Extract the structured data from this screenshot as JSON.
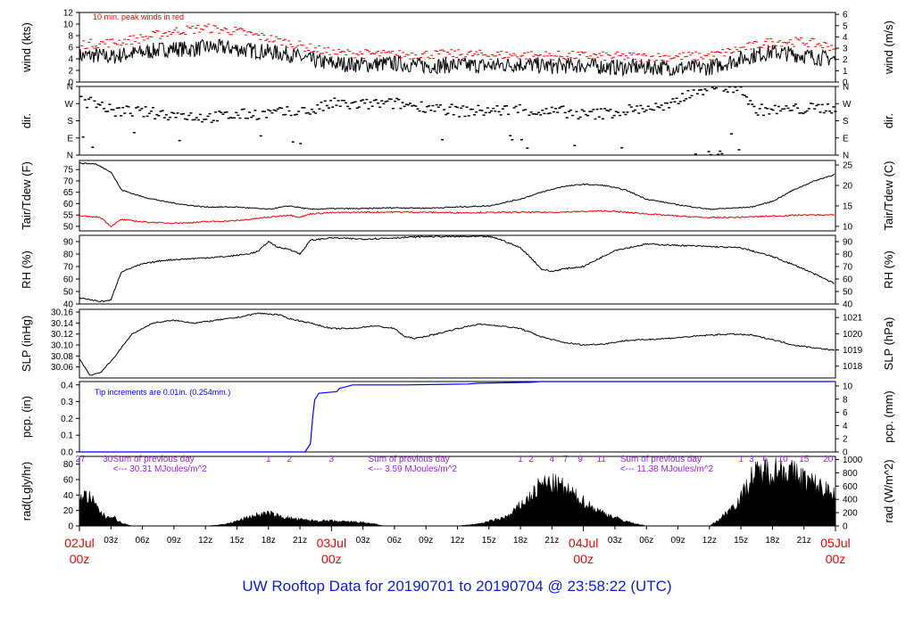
{
  "footer": {
    "title": "UW Rooftop Data for 20190701  to  20190704 @ 23:58:22  (UTC)"
  },
  "colors": {
    "axis": "#000000",
    "peak": "#ff0000",
    "pcp": "#0000ff",
    "purple": "#a020f0",
    "date": "#ff0000",
    "footer": "#0b1fd6",
    "dew": "#ff0000"
  },
  "time_axis": {
    "tick_labels": [
      "03z",
      "06z",
      "09z",
      "12z",
      "15z",
      "18z",
      "21z",
      "03z",
      "06z",
      "09z",
      "12z",
      "15z",
      "18z",
      "21z",
      "03z",
      "06z",
      "09z",
      "12z",
      "15z",
      "18z",
      "21z"
    ],
    "tick_hours": [
      3,
      6,
      9,
      12,
      15,
      18,
      21,
      27,
      30,
      33,
      36,
      39,
      42,
      45,
      51,
      54,
      57,
      60,
      63,
      66,
      69
    ],
    "date_labels": [
      {
        "date": "02Jul",
        "time": "00z",
        "hour": 0
      },
      {
        "date": "03Jul",
        "time": "00z",
        "hour": 24
      },
      {
        "date": "04Jul",
        "time": "00z",
        "hour": 48
      },
      {
        "date": "05Jul",
        "time": "00z",
        "hour": 72
      }
    ],
    "range_hours": [
      0,
      72
    ]
  },
  "chart_data": [
    {
      "type": "line",
      "ylabel_left": "wind (kts)",
      "ylabel_right": "wind (m/s)",
      "left_ticks": [
        0,
        2,
        4,
        6,
        8,
        10,
        12
      ],
      "left_range": [
        0,
        12
      ],
      "right_ticks": [
        0,
        1,
        2,
        3,
        4,
        5,
        6
      ],
      "right_range": [
        0,
        6.17
      ],
      "annotation": "10 min. peak winds in red",
      "series": [
        {
          "role": "wind",
          "x": [
            0,
            1.5,
            3,
            4.5,
            6,
            7.5,
            9,
            10.5,
            12,
            14,
            16,
            18,
            20,
            21,
            22.5,
            24,
            27,
            30,
            33,
            36,
            39,
            42,
            45,
            48,
            51,
            54,
            57,
            60,
            62,
            64,
            66,
            68,
            69,
            70.5,
            72
          ],
          "y": [
            4.5,
            4.6,
            4.3,
            4.8,
            5.1,
            5.5,
            5.8,
            5.6,
            6,
            5.9,
            5.5,
            5.2,
            4.8,
            4.2,
            3.6,
            3.2,
            3.0,
            3.2,
            2.8,
            2.9,
            2.8,
            3.1,
            2.7,
            2.9,
            2.5,
            2.6,
            2.4,
            2.5,
            3.5,
            4.5,
            5.2,
            4.8,
            4.6,
            4.2,
            4.0
          ]
        },
        {
          "role": "peak",
          "x": [
            0,
            3,
            6,
            9,
            12,
            15,
            18,
            21,
            24,
            30,
            36,
            42,
            48,
            54,
            60,
            63,
            66,
            69,
            72
          ],
          "y": [
            6.5,
            6.8,
            7.6,
            8.8,
            9.3,
            8.7,
            7.5,
            6.2,
            5.0,
            4.7,
            4.8,
            4.6,
            4.5,
            4.3,
            4.5,
            5.8,
            7.0,
            6.9,
            6.0
          ]
        }
      ]
    },
    {
      "type": "scatter",
      "ylabel_left": "dir.",
      "ylabel_right": "dir.",
      "left_ticks": [
        "N",
        "E",
        "S",
        "W",
        "N"
      ],
      "right_ticks": [
        "N",
        "E",
        "S",
        "W",
        "N"
      ],
      "left_range": [
        0,
        360
      ],
      "series": [
        {
          "role": "dir",
          "x": [
            0,
            1.5,
            3,
            4.5,
            6,
            8,
            10,
            12,
            14,
            16,
            18,
            20,
            22,
            24,
            26,
            28,
            30,
            32,
            34,
            36,
            38,
            40,
            42,
            44,
            46,
            48,
            50,
            52,
            54,
            56,
            58,
            60,
            61,
            62,
            63,
            64,
            66,
            68,
            70,
            72
          ],
          "y": [
            282,
            275,
            230,
            230,
            225,
            215,
            208,
            198,
            205,
            215,
            218,
            225,
            232,
            270,
            262,
            268,
            270,
            258,
            250,
            230,
            232,
            235,
            242,
            222,
            228,
            210,
            220,
            235,
            248,
            250,
            330,
            355,
            358,
            355,
            345,
            240,
            235,
            240,
            245,
            250
          ]
        }
      ]
    },
    {
      "type": "line",
      "ylabel_left": "Tair/Tdew (F)",
      "ylabel_right": "Tair/Tdew (C)",
      "left_ticks": [
        50,
        55,
        60,
        65,
        70,
        75
      ],
      "left_range": [
        48,
        79
      ],
      "right_ticks": [
        10,
        15,
        20,
        25
      ],
      "series": [
        {
          "role": "tair",
          "x": [
            0,
            1.5,
            3,
            4,
            6,
            8,
            10,
            12,
            15,
            18,
            20,
            22,
            24,
            27,
            30,
            33,
            36,
            39,
            42,
            44,
            46,
            48,
            50,
            52,
            54,
            57,
            60,
            62,
            64,
            66,
            68,
            70,
            72
          ],
          "y": [
            77.8,
            77.5,
            74,
            66,
            63,
            61,
            59.5,
            58.5,
            58.5,
            57.5,
            59,
            57.5,
            57.8,
            57.8,
            58.2,
            58,
            58.5,
            59,
            62,
            65,
            67.5,
            68.5,
            68,
            66,
            62,
            59.5,
            57.5,
            58,
            58.5,
            61,
            66,
            70,
            73
          ]
        },
        {
          "role": "tdew",
          "x": [
            0,
            2,
            3,
            4,
            6,
            8,
            10,
            12,
            15,
            18,
            20,
            21,
            22,
            24,
            27,
            30,
            33,
            36,
            39,
            42,
            45,
            48,
            50,
            52,
            54,
            57,
            60,
            63,
            66,
            69,
            72
          ],
          "y": [
            54.5,
            54,
            50,
            53,
            52,
            51.5,
            51.5,
            52,
            52.5,
            54,
            55,
            54,
            55.5,
            56,
            56.2,
            56.3,
            56.2,
            56,
            56.1,
            56.2,
            56.2,
            56.5,
            56.8,
            56.2,
            55.5,
            54.5,
            53.8,
            54,
            54.5,
            55,
            55
          ]
        }
      ]
    },
    {
      "type": "line",
      "ylabel_left": "RH (%)",
      "ylabel_right": "RH (%)",
      "left_ticks": [
        40,
        50,
        60,
        70,
        80,
        90
      ],
      "left_range": [
        40,
        95
      ],
      "right_ticks": [
        40,
        50,
        60,
        70,
        80,
        90
      ],
      "series": [
        {
          "role": "rh",
          "x": [
            0,
            2,
            3,
            3.5,
            4,
            6,
            8,
            10,
            12,
            14,
            16,
            17,
            18,
            19,
            20,
            21,
            22,
            24,
            27,
            30,
            33,
            36,
            39,
            40,
            42,
            43,
            44,
            45,
            46,
            48,
            51,
            54,
            57,
            60,
            63,
            66,
            69,
            72
          ],
          "y": [
            45,
            42,
            43,
            55,
            66,
            72,
            75,
            76,
            77,
            78,
            80,
            82,
            90,
            85,
            84,
            80,
            91,
            93,
            92,
            93,
            94,
            94,
            94,
            92,
            85,
            77,
            68,
            66,
            68,
            70,
            83,
            88,
            87,
            86,
            85,
            78,
            68,
            56
          ]
        }
      ]
    },
    {
      "type": "line",
      "ylabel_left": "SLP (inHg)",
      "ylabel_right": "SLP (hPa)",
      "left_ticks": [
        30.06,
        30.08,
        30.1,
        30.12,
        30.14,
        30.16
      ],
      "left_range": [
        30.04,
        30.165
      ],
      "left_ticks_display": [
        "30.06",
        "30.08",
        "30.10",
        "30.12",
        "30.14",
        "30.16"
      ],
      "right_ticks": [
        1018,
        1019,
        1020,
        1021
      ],
      "series": [
        {
          "role": "slp",
          "x": [
            0,
            1,
            2,
            3,
            4,
            5,
            7,
            9,
            11,
            13,
            15,
            17,
            19,
            20,
            22,
            24,
            26,
            28,
            30,
            31,
            32,
            34,
            36,
            38,
            40,
            42,
            44,
            46,
            48,
            50,
            52,
            54,
            56,
            58,
            60,
            62,
            64,
            66,
            68,
            70,
            72
          ],
          "y": [
            30.075,
            30.045,
            30.05,
            30.07,
            30.095,
            30.12,
            30.14,
            30.145,
            30.14,
            30.145,
            30.15,
            30.158,
            30.155,
            30.148,
            30.14,
            30.13,
            30.13,
            30.135,
            30.13,
            30.115,
            30.112,
            30.12,
            30.13,
            30.138,
            30.135,
            30.13,
            30.115,
            30.105,
            30.1,
            30.102,
            30.108,
            30.11,
            30.112,
            30.115,
            30.118,
            30.12,
            30.118,
            30.11,
            30.1,
            30.095,
            30.09
          ]
        }
      ]
    },
    {
      "type": "line",
      "ylabel_left": "pcp. (in)",
      "ylabel_right": "pcp. (mm)",
      "left_ticks": [
        0,
        0.1,
        0.2,
        0.3,
        0.4
      ],
      "left_range": [
        0,
        0.42
      ],
      "left_ticks_display": [
        "0.0",
        "0.1",
        "0.2",
        "0.3",
        "0.4"
      ],
      "right_ticks": [
        0,
        2,
        4,
        6,
        8,
        10
      ],
      "annotation": "Tip increments are 0.01in. (0.254mm.)",
      "series": [
        {
          "role": "pcp",
          "x": [
            0,
            21,
            21.5,
            22,
            22.2,
            22.4,
            22.8,
            24.5,
            24.8,
            25.5,
            26,
            31,
            37,
            38,
            43,
            44,
            72
          ],
          "y": [
            0,
            0,
            0,
            0.05,
            0.2,
            0.31,
            0.35,
            0.36,
            0.38,
            0.39,
            0.4,
            0.4,
            0.405,
            0.41,
            0.415,
            0.42,
            0.42
          ]
        }
      ]
    },
    {
      "type": "area",
      "ylabel_left": "rad(Lgly/hr)",
      "ylabel_right": "rad (W/m^2)",
      "left_ticks": [
        0,
        20,
        40,
        60,
        80
      ],
      "left_range": [
        0,
        90
      ],
      "right_ticks": [
        0,
        200,
        400,
        600,
        800,
        1000
      ],
      "series": [
        {
          "role": "rad",
          "x": [
            0,
            1,
            2,
            2.5,
            3,
            3.5,
            4,
            4.5,
            5,
            12,
            13,
            14,
            15,
            16,
            17,
            18,
            19,
            20,
            21,
            22,
            23,
            24,
            25,
            26,
            27,
            28,
            29,
            36,
            38,
            40,
            41,
            42,
            43,
            44,
            45,
            46,
            47,
            48,
            49,
            50,
            51,
            52,
            53,
            54,
            60,
            61,
            62,
            63,
            64,
            65,
            66,
            67,
            68,
            69,
            70,
            71,
            72
          ],
          "y": [
            46,
            40,
            20,
            12,
            15,
            10,
            4,
            2,
            0,
            0,
            1,
            3,
            7,
            12,
            16,
            18,
            14,
            11,
            9,
            8,
            7,
            7,
            6,
            6,
            5,
            3,
            0,
            0,
            3,
            10,
            15,
            30,
            42,
            60,
            60,
            55,
            45,
            35,
            25,
            18,
            12,
            7,
            3,
            0,
            0,
            10,
            25,
            40,
            70,
            78,
            80,
            82,
            75,
            68,
            60,
            52,
            50
          ]
        }
      ],
      "tip_labels": [
        "27",
        "30",
        "1",
        "2",
        "3",
        "1",
        "2",
        "4",
        "7",
        "9",
        "11",
        "1",
        "3",
        "6",
        "10",
        "15",
        "20"
      ],
      "tip_hours": [
        0,
        2.7,
        18,
        20,
        24,
        42,
        43,
        45,
        46.3,
        47.7,
        49.7,
        63,
        64,
        65.3,
        67,
        69,
        71.3
      ],
      "purple_text": [
        {
          "line1": "Sum of previous day",
          "line2": "<--- 30.31 MJoules/m^2",
          "hour": 3.2
        },
        {
          "line1": "Sum of previous day",
          "line2": "<--- 3.59 MJoules/m^2",
          "hour": 27.5
        },
        {
          "line1": "Sum of previous day",
          "line2": "<--- 11.38 MJoules/m^2",
          "hour": 51.5
        }
      ]
    }
  ]
}
